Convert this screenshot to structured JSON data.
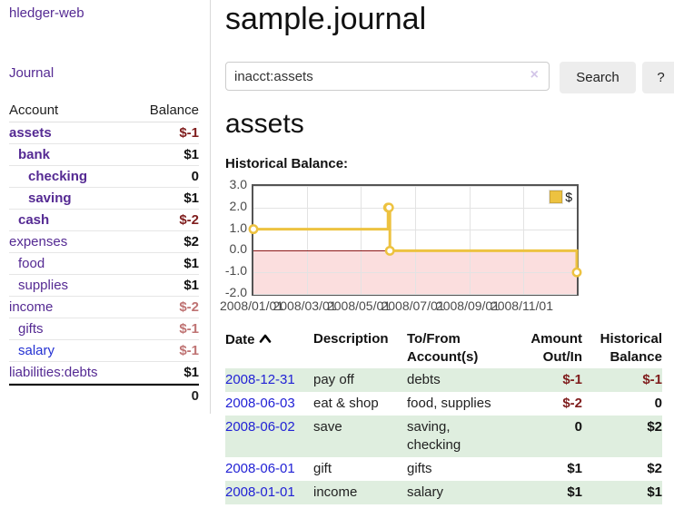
{
  "sidebar": {
    "brand": "hledger-web",
    "nav": {
      "journal": "Journal"
    },
    "accounts_table": {
      "headers": {
        "account": "Account",
        "balance": "Balance"
      },
      "rows": [
        {
          "account": "assets",
          "balance": "$-1"
        },
        {
          "account": "bank",
          "balance": "$1"
        },
        {
          "account": "checking",
          "balance": "0"
        },
        {
          "account": "saving",
          "balance": "$1"
        },
        {
          "account": "cash",
          "balance": "$-2"
        },
        {
          "account": "expenses",
          "balance": "$2"
        },
        {
          "account": "food",
          "balance": "$1"
        },
        {
          "account": "supplies",
          "balance": "$1"
        },
        {
          "account": "income",
          "balance": "$-2"
        },
        {
          "account": "gifts",
          "balance": "$-1"
        },
        {
          "account": "salary",
          "balance": "$-1"
        },
        {
          "account": "liabilities:debts",
          "balance": "$1"
        }
      ],
      "total": "0"
    }
  },
  "main": {
    "title": "sample.journal",
    "search": {
      "value": "inacct:assets",
      "clear_icon": "×",
      "button": "Search",
      "help_button": "?"
    },
    "account_heading": "assets",
    "chart_label": "Historical Balance:",
    "register_table": {
      "headers": {
        "date": "Date",
        "description": "Description",
        "tofrom": "To/From Account(s)",
        "amount": "Amount Out/In",
        "balance": "Historical Balance"
      },
      "rows": [
        {
          "date": "2008-12-31",
          "description": "pay off",
          "accounts": "debts",
          "amount": "$-1",
          "balance": "$-1"
        },
        {
          "date": "2008-06-03",
          "description": "eat & shop",
          "accounts": "food, supplies",
          "amount": "$-2",
          "balance": "0"
        },
        {
          "date": "2008-06-02",
          "description": "save",
          "accounts": "saving, checking",
          "amount": "0",
          "balance": "$2"
        },
        {
          "date": "2008-06-01",
          "description": "gift",
          "accounts": "gifts",
          "amount": "$1",
          "balance": "$2"
        },
        {
          "date": "2008-01-01",
          "description": "income",
          "accounts": "salary",
          "amount": "$1",
          "balance": "$1"
        }
      ]
    }
  },
  "chart_data": {
    "type": "line",
    "style": "step",
    "title": "Historical Balance",
    "legend": [
      {
        "label": "$",
        "color": "#edc240"
      }
    ],
    "ylim": [
      -2.0,
      3.0
    ],
    "y_ticks": [
      "3.0",
      "2.0",
      "1.0",
      "0.0",
      "-1.0",
      "-2.0"
    ],
    "x_range_days": [
      0,
      365
    ],
    "x_ticks": [
      {
        "day": 0,
        "label": "2008/01/01"
      },
      {
        "day": 60,
        "label": "2008/03/01"
      },
      {
        "day": 121,
        "label": "2008/05/01"
      },
      {
        "day": 182,
        "label": "2008/07/01"
      },
      {
        "day": 244,
        "label": "2008/09/01"
      },
      {
        "day": 305,
        "label": "2008/11/01"
      }
    ],
    "series": [
      {
        "name": "$",
        "color": "#edc240",
        "points": [
          {
            "date": "2008-01-01",
            "day": 0,
            "value": 1
          },
          {
            "date": "2008-06-01",
            "day": 152,
            "value": 2
          },
          {
            "date": "2008-06-02",
            "day": 153,
            "value": 2
          },
          {
            "date": "2008-06-03",
            "day": 154,
            "value": 0
          },
          {
            "date": "2008-12-31",
            "day": 365,
            "value": -1
          }
        ]
      }
    ],
    "negative_region_color": "#fbdede",
    "zero_line_color": "#8c1717",
    "grid": true,
    "legend_position": "top-right"
  }
}
